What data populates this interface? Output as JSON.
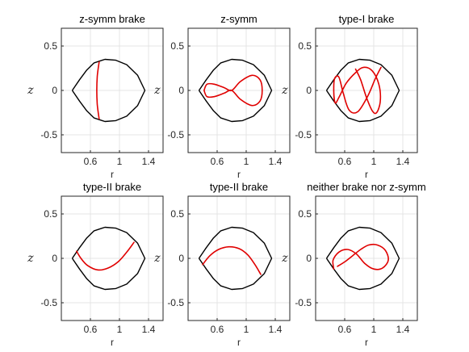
{
  "colors": {
    "boundary": "#000000",
    "orbit": "#e00000",
    "grid": "#e4e4e4",
    "axes": "#262626"
  },
  "chart_data": [
    {
      "type": "line",
      "title": "z-symm brake",
      "xlabel": "r",
      "ylabel": "z",
      "xlim": [
        0.2,
        1.6
      ],
      "ylim": [
        -0.7,
        0.7
      ],
      "xticks": [
        "0.6",
        "1",
        "1.4"
      ],
      "yticks": [
        "0.5",
        "0",
        "-0.5"
      ],
      "grid": true,
      "series": [
        {
          "role": "boundary",
          "points": [
            [
              0.35,
              0.0
            ],
            [
              0.45,
              -0.12
            ],
            [
              0.55,
              -0.23
            ],
            [
              0.65,
              -0.31
            ],
            [
              0.8,
              -0.35
            ],
            [
              0.95,
              -0.34
            ],
            [
              1.1,
              -0.29
            ],
            [
              1.25,
              -0.17
            ],
            [
              1.35,
              0.0
            ],
            [
              1.25,
              0.17
            ],
            [
              1.1,
              0.29
            ],
            [
              0.95,
              0.34
            ],
            [
              0.8,
              0.35
            ],
            [
              0.65,
              0.31
            ],
            [
              0.55,
              0.23
            ],
            [
              0.45,
              0.12
            ],
            [
              0.35,
              0.0
            ]
          ]
        },
        {
          "role": "orbit",
          "points": [
            [
              0.72,
              0.32
            ],
            [
              0.695,
              0.16
            ],
            [
              0.688,
              0.0
            ],
            [
              0.695,
              -0.16
            ],
            [
              0.72,
              -0.32
            ]
          ]
        }
      ]
    },
    {
      "type": "line",
      "title": "z-symm",
      "xlabel": "r",
      "ylabel": "z",
      "xlim": [
        0.2,
        1.6
      ],
      "ylim": [
        -0.7,
        0.7
      ],
      "xticks": [
        "0.6",
        "1",
        "1.4"
      ],
      "yticks": [
        "0.5",
        "0",
        "-0.5"
      ],
      "grid": true,
      "series": [
        {
          "role": "boundary",
          "points": [
            [
              0.35,
              0.0
            ],
            [
              0.45,
              -0.12
            ],
            [
              0.55,
              -0.23
            ],
            [
              0.65,
              -0.31
            ],
            [
              0.8,
              -0.35
            ],
            [
              0.95,
              -0.34
            ],
            [
              1.1,
              -0.29
            ],
            [
              1.25,
              -0.17
            ],
            [
              1.35,
              0.0
            ],
            [
              1.25,
              0.17
            ],
            [
              1.1,
              0.29
            ],
            [
              0.95,
              0.34
            ],
            [
              0.8,
              0.35
            ],
            [
              0.65,
              0.31
            ],
            [
              0.55,
              0.23
            ],
            [
              0.45,
              0.12
            ],
            [
              0.35,
              0.0
            ]
          ]
        },
        {
          "role": "orbit",
          "points": [
            [
              0.42,
              0.0
            ],
            [
              0.46,
              0.07
            ],
            [
              0.56,
              0.07
            ],
            [
              0.7,
              0.03
            ],
            [
              0.8,
              0.0
            ],
            [
              0.92,
              0.1
            ],
            [
              1.08,
              0.17
            ],
            [
              1.19,
              0.12
            ],
            [
              1.22,
              0.0
            ],
            [
              1.19,
              -0.12
            ],
            [
              1.08,
              -0.17
            ],
            [
              0.92,
              -0.1
            ],
            [
              0.8,
              0.0
            ],
            [
              0.7,
              -0.03
            ],
            [
              0.56,
              -0.07
            ],
            [
              0.46,
              -0.07
            ],
            [
              0.42,
              0.0
            ]
          ]
        }
      ]
    },
    {
      "type": "line",
      "title": "type-I brake",
      "xlabel": "r",
      "ylabel": "z",
      "xlim": [
        0.2,
        1.6
      ],
      "ylim": [
        -0.7,
        0.7
      ],
      "xticks": [
        "0.6",
        "1",
        "1.4"
      ],
      "yticks": [
        "0.5",
        "0",
        "-0.5"
      ],
      "grid": true,
      "series": [
        {
          "role": "boundary",
          "points": [
            [
              0.35,
              0.0
            ],
            [
              0.45,
              -0.12
            ],
            [
              0.55,
              -0.23
            ],
            [
              0.65,
              -0.31
            ],
            [
              0.8,
              -0.35
            ],
            [
              0.95,
              -0.34
            ],
            [
              1.1,
              -0.29
            ],
            [
              1.25,
              -0.17
            ],
            [
              1.35,
              0.0
            ],
            [
              1.25,
              0.17
            ],
            [
              1.1,
              0.29
            ],
            [
              0.95,
              0.34
            ],
            [
              0.8,
              0.35
            ],
            [
              0.65,
              0.31
            ],
            [
              0.55,
              0.23
            ],
            [
              0.45,
              0.12
            ],
            [
              0.35,
              0.0
            ]
          ]
        },
        {
          "role": "orbit",
          "points": [
            [
              1.1,
              0.26
            ],
            [
              1.02,
              0.13
            ],
            [
              0.92,
              -0.06
            ],
            [
              0.78,
              -0.24
            ],
            [
              0.66,
              -0.22
            ],
            [
              0.58,
              -0.03
            ],
            [
              0.52,
              0.15
            ],
            [
              0.46,
              0.13
            ],
            [
              0.45,
              -0.02
            ],
            [
              0.47,
              -0.14
            ],
            [
              0.52,
              -0.08
            ],
            [
              0.62,
              0.08
            ],
            [
              0.75,
              0.2
            ],
            [
              0.86,
              0.26
            ],
            [
              0.98,
              0.22
            ],
            [
              1.07,
              0.07
            ],
            [
              1.09,
              -0.12
            ],
            [
              1.04,
              -0.25
            ],
            [
              0.98,
              -0.23
            ],
            [
              0.9,
              -0.08
            ],
            [
              0.82,
              0.12
            ],
            [
              0.75,
              0.24
            ]
          ]
        }
      ]
    },
    {
      "type": "line",
      "title": "type-II brake",
      "xlabel": "r",
      "ylabel": "z",
      "xlim": [
        0.2,
        1.6
      ],
      "ylim": [
        -0.7,
        0.7
      ],
      "xticks": [
        "0.6",
        "1",
        "1.4"
      ],
      "yticks": [
        "0.5",
        "0",
        "-0.5"
      ],
      "grid": true,
      "series": [
        {
          "role": "boundary",
          "points": [
            [
              0.35,
              0.0
            ],
            [
              0.45,
              -0.12
            ],
            [
              0.55,
              -0.23
            ],
            [
              0.65,
              -0.31
            ],
            [
              0.8,
              -0.35
            ],
            [
              0.95,
              -0.34
            ],
            [
              1.1,
              -0.29
            ],
            [
              1.25,
              -0.17
            ],
            [
              1.35,
              0.0
            ],
            [
              1.25,
              0.17
            ],
            [
              1.1,
              0.29
            ],
            [
              0.95,
              0.34
            ],
            [
              0.8,
              0.35
            ],
            [
              0.65,
              0.31
            ],
            [
              0.55,
              0.23
            ],
            [
              0.45,
              0.12
            ],
            [
              0.35,
              0.0
            ]
          ]
        },
        {
          "role": "orbit",
          "points": [
            [
              0.41,
              0.08
            ],
            [
              0.47,
              0.0
            ],
            [
              0.56,
              -0.08
            ],
            [
              0.7,
              -0.13
            ],
            [
              0.84,
              -0.11
            ],
            [
              0.98,
              -0.04
            ],
            [
              1.1,
              0.07
            ],
            [
              1.2,
              0.18
            ]
          ]
        }
      ]
    },
    {
      "type": "line",
      "title": "type-II brake",
      "xlabel": "r",
      "ylabel": "z",
      "xlim": [
        0.2,
        1.6
      ],
      "ylim": [
        -0.7,
        0.7
      ],
      "xticks": [
        "0.6",
        "1",
        "1.4"
      ],
      "yticks": [
        "0.5",
        "0",
        "-0.5"
      ],
      "grid": true,
      "series": [
        {
          "role": "boundary",
          "points": [
            [
              0.35,
              0.0
            ],
            [
              0.45,
              -0.12
            ],
            [
              0.55,
              -0.23
            ],
            [
              0.65,
              -0.31
            ],
            [
              0.8,
              -0.35
            ],
            [
              0.95,
              -0.34
            ],
            [
              1.1,
              -0.29
            ],
            [
              1.25,
              -0.17
            ],
            [
              1.35,
              0.0
            ],
            [
              1.25,
              0.17
            ],
            [
              1.1,
              0.29
            ],
            [
              0.95,
              0.34
            ],
            [
              0.8,
              0.35
            ],
            [
              0.65,
              0.31
            ],
            [
              0.55,
              0.23
            ],
            [
              0.45,
              0.12
            ],
            [
              0.35,
              0.0
            ]
          ]
        },
        {
          "role": "orbit",
          "points": [
            [
              0.4,
              -0.07
            ],
            [
              0.5,
              0.03
            ],
            [
              0.62,
              0.1
            ],
            [
              0.76,
              0.13
            ],
            [
              0.9,
              0.11
            ],
            [
              1.02,
              0.04
            ],
            [
              1.12,
              -0.07
            ],
            [
              1.2,
              -0.18
            ]
          ]
        }
      ]
    },
    {
      "type": "line",
      "title": "neither brake nor z-symm",
      "xlabel": "r",
      "ylabel": "z",
      "xlim": [
        0.2,
        1.6
      ],
      "ylim": [
        -0.7,
        0.7
      ],
      "xticks": [
        "0.6",
        "1",
        "1.4"
      ],
      "yticks": [
        "0.5",
        "0",
        "-0.5"
      ],
      "grid": true,
      "series": [
        {
          "role": "boundary",
          "points": [
            [
              0.35,
              0.0
            ],
            [
              0.45,
              -0.12
            ],
            [
              0.55,
              -0.23
            ],
            [
              0.65,
              -0.31
            ],
            [
              0.8,
              -0.35
            ],
            [
              0.95,
              -0.34
            ],
            [
              1.1,
              -0.29
            ],
            [
              1.25,
              -0.17
            ],
            [
              1.35,
              0.0
            ],
            [
              1.25,
              0.17
            ],
            [
              1.1,
              0.29
            ],
            [
              0.95,
              0.34
            ],
            [
              0.8,
              0.35
            ],
            [
              0.65,
              0.31
            ],
            [
              0.55,
              0.23
            ],
            [
              0.45,
              0.12
            ],
            [
              0.35,
              0.0
            ]
          ]
        },
        {
          "role": "orbit",
          "points": [
            [
              0.45,
              -0.12
            ],
            [
              0.44,
              -0.02
            ],
            [
              0.52,
              0.07
            ],
            [
              0.64,
              0.1
            ],
            [
              0.76,
              0.05
            ],
            [
              0.88,
              -0.06
            ],
            [
              1.0,
              -0.12
            ],
            [
              1.12,
              -0.11
            ],
            [
              1.2,
              -0.02
            ],
            [
              1.16,
              0.09
            ],
            [
              1.05,
              0.15
            ],
            [
              0.93,
              0.15
            ],
            [
              0.82,
              0.1
            ],
            [
              0.71,
              0.03
            ],
            [
              0.6,
              -0.04
            ],
            [
              0.5,
              -0.09
            ]
          ]
        }
      ]
    }
  ]
}
